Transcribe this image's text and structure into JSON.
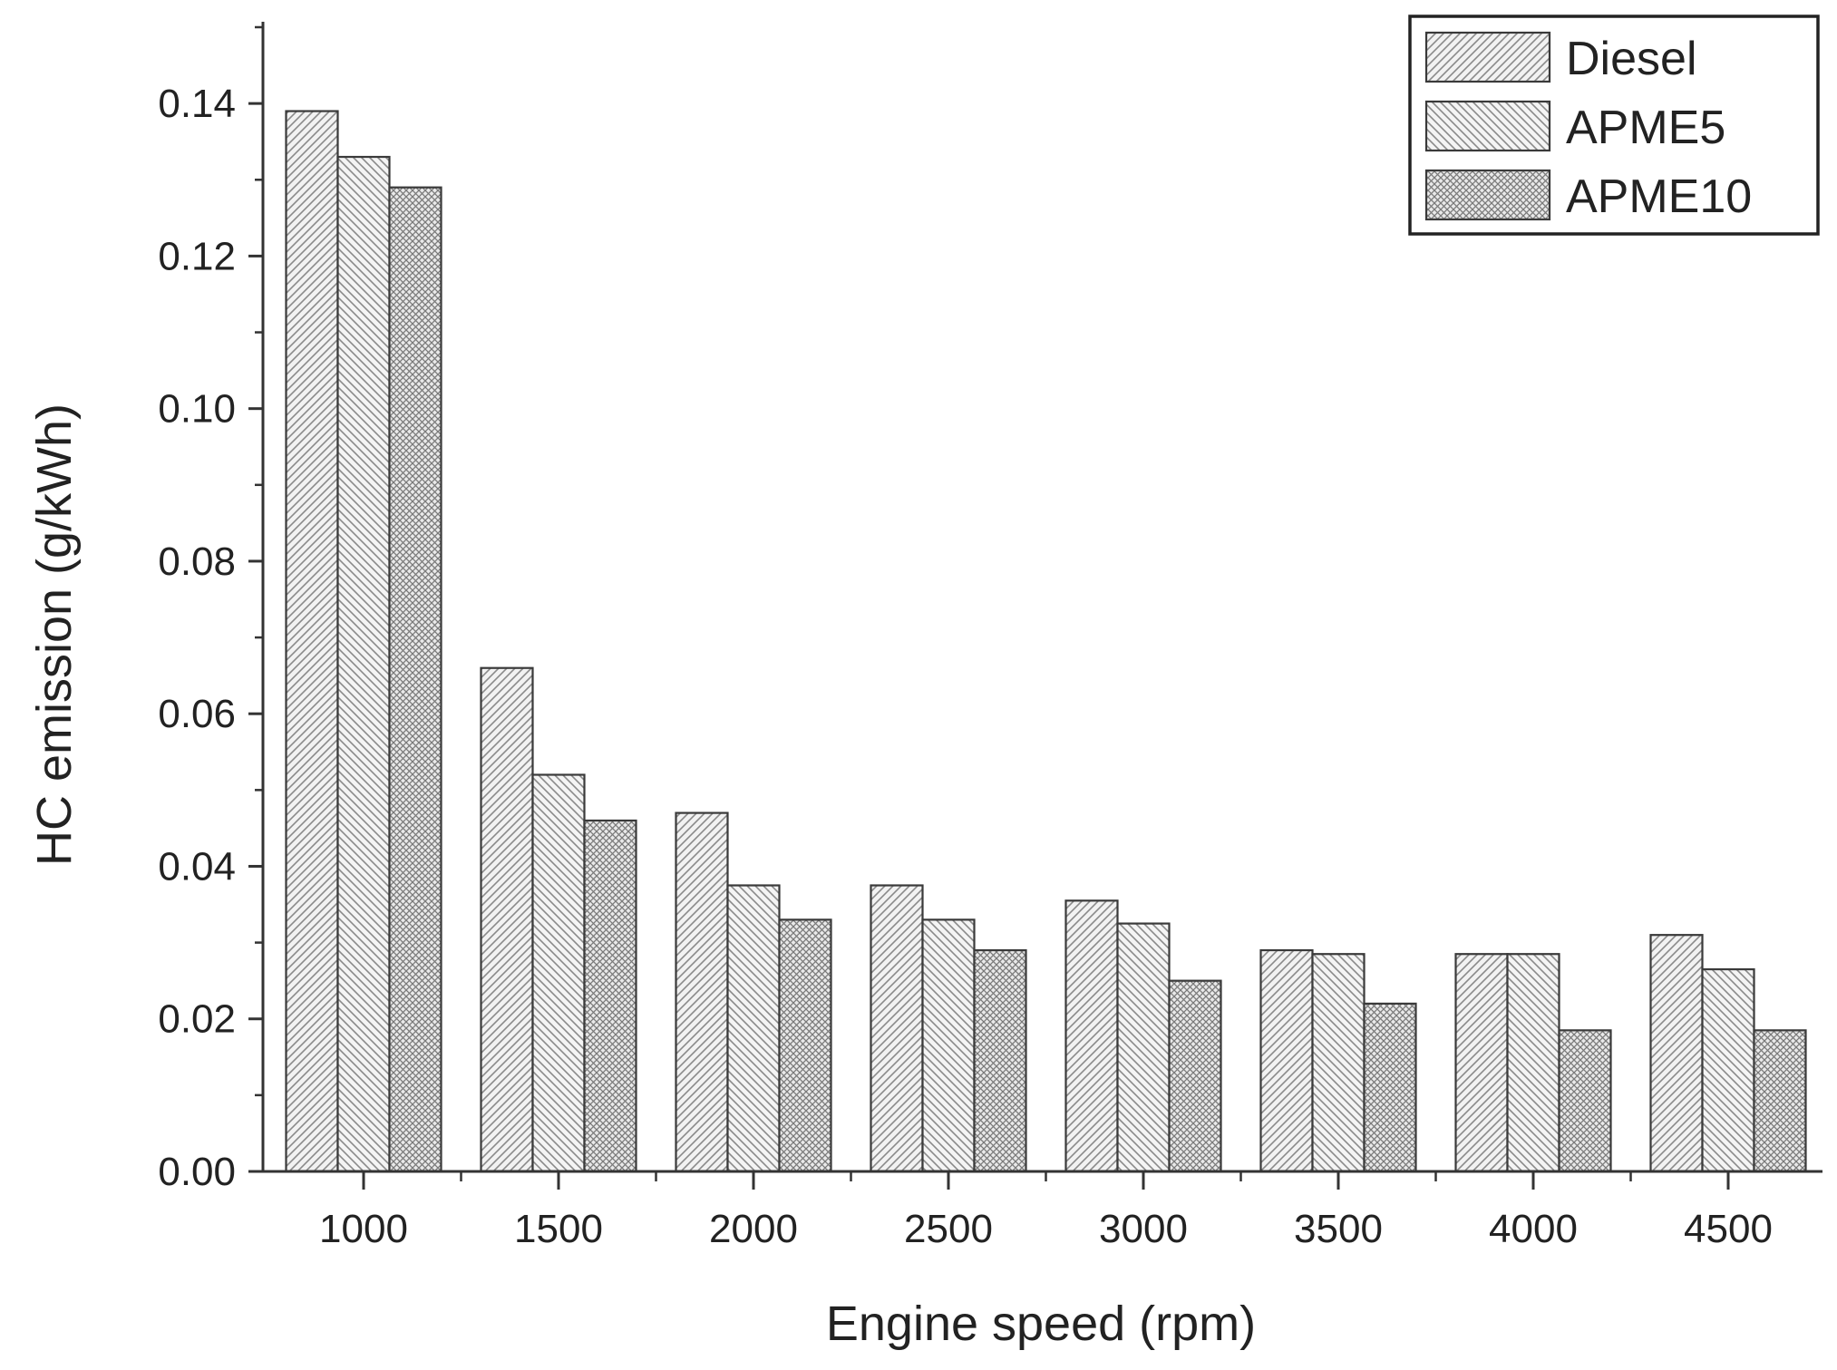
{
  "chart_data": {
    "type": "bar",
    "xlabel": "Engine speed (rpm)",
    "ylabel": "HC emission (g/kWh)",
    "categories": [
      "1000",
      "1500",
      "2000",
      "2500",
      "3000",
      "3500",
      "4000",
      "4500"
    ],
    "ylim": [
      0,
      0.15
    ],
    "yticks": [
      "0.00",
      "0.02",
      "0.04",
      "0.06",
      "0.08",
      "0.10",
      "0.12",
      "0.14"
    ],
    "grid": false,
    "legend_position": "top-right",
    "series": [
      {
        "name": "Diesel",
        "pattern": "diagonal-up",
        "values": [
          0.139,
          0.066,
          0.047,
          0.0375,
          0.0355,
          0.029,
          0.0285,
          0.031
        ]
      },
      {
        "name": "APME5",
        "pattern": "diagonal-down",
        "values": [
          0.133,
          0.052,
          0.0375,
          0.033,
          0.0325,
          0.0285,
          0.0285,
          0.0265
        ]
      },
      {
        "name": "APME10",
        "pattern": "crosshatch",
        "values": [
          0.129,
          0.046,
          0.033,
          0.029,
          0.025,
          0.022,
          0.0185,
          0.0185
        ]
      }
    ]
  }
}
